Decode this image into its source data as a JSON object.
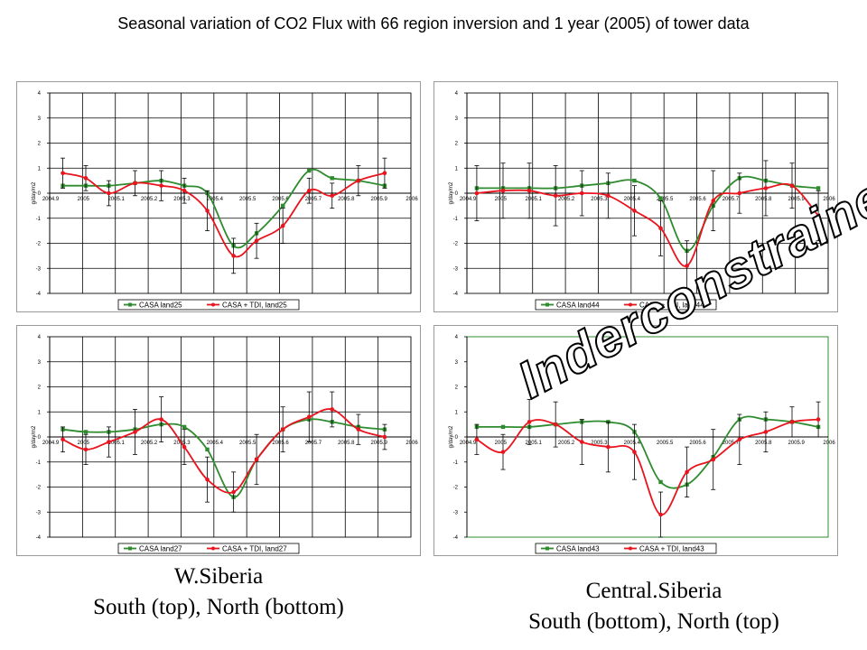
{
  "title": "Seasonal variation of CO2 Flux with 66 region inversion and 1 year (2005) of tower data",
  "captions": {
    "left_line1": "W.Siberia",
    "left_line2": "South (top), North (bottom)",
    "right_line1": "Central.Siberia",
    "right_line2": "South (bottom), North (top)"
  },
  "annotation": "Inderconstrained",
  "colors": {
    "green": "#2e8b2e",
    "red": "#e8141e",
    "grid": "#000000",
    "plot_bg": "#ffffff"
  },
  "chart_data": [
    {
      "id": "w-siberia-south",
      "type": "line",
      "ylabel": "g/day/m2",
      "x_tick_labels": [
        "2004.9",
        "2005",
        "2005.1",
        "2005.2",
        "2005.3",
        "2005.4",
        "2005.5",
        "2005.6",
        "2005.7",
        "2005.8",
        "2005.9",
        "2006"
      ],
      "xlim": [
        2004.9,
        2006
      ],
      "ylim": [
        -4,
        4
      ],
      "y_ticks": [
        -4,
        -3,
        -2,
        -1,
        0,
        1,
        2,
        3,
        4
      ],
      "grid": true,
      "legend_position": "bottom",
      "series": [
        {
          "name": "CASA land25",
          "color": "#2e8b2e",
          "x": [
            2004.94,
            2005.01,
            2005.08,
            2005.16,
            2005.24,
            2005.31,
            2005.38,
            2005.46,
            2005.53,
            2005.61,
            2005.69,
            2005.76,
            2005.84,
            2005.92
          ],
          "y": [
            0.3,
            0.3,
            0.3,
            0.4,
            0.5,
            0.3,
            0.0,
            -2.1,
            -1.6,
            -0.5,
            0.9,
            0.6,
            0.5,
            0.3
          ]
        },
        {
          "name": "CASA + TDI, land25",
          "color": "#e8141e",
          "x": [
            2004.94,
            2005.01,
            2005.08,
            2005.16,
            2005.24,
            2005.31,
            2005.38,
            2005.46,
            2005.53,
            2005.61,
            2005.69,
            2005.76,
            2005.84,
            2005.92
          ],
          "y": [
            0.8,
            0.6,
            0.0,
            0.4,
            0.3,
            0.1,
            -0.7,
            -2.5,
            -1.9,
            -1.3,
            0.1,
            -0.1,
            0.5,
            0.8
          ],
          "error": [
            0.6,
            0.5,
            0.5,
            0.5,
            0.6,
            0.5,
            0.8,
            0.7,
            0.7,
            0.7,
            0.5,
            0.5,
            0.6,
            0.6
          ]
        }
      ]
    },
    {
      "id": "c-siberia-north",
      "type": "line",
      "ylabel": "g/day/m2",
      "x_tick_labels": [
        "2004.9",
        "2005",
        "2005.1",
        "2005.2",
        "2005.3",
        "2005.4",
        "2005.5",
        "2005.6",
        "2005.7",
        "2005.8",
        "2005.9",
        "2006"
      ],
      "xlim": [
        2004.9,
        2006
      ],
      "ylim": [
        -4,
        4
      ],
      "y_ticks": [
        -4,
        -3,
        -2,
        -1,
        0,
        1,
        2,
        3,
        4
      ],
      "grid": true,
      "legend_position": "bottom",
      "series": [
        {
          "name": "CASA land44",
          "color": "#2e8b2e",
          "x": [
            2004.93,
            2005.01,
            2005.09,
            2005.17,
            2005.25,
            2005.33,
            2005.41,
            2005.49,
            2005.57,
            2005.65,
            2005.73,
            2005.81,
            2005.89,
            2005.97
          ],
          "y": [
            0.2,
            0.2,
            0.2,
            0.2,
            0.3,
            0.4,
            0.5,
            -0.2,
            -2.3,
            -0.5,
            0.6,
            0.5,
            0.3,
            0.2
          ]
        },
        {
          "name": "CASA + TDI, land44",
          "color": "#e8141e",
          "x": [
            2004.93,
            2005.01,
            2005.09,
            2005.17,
            2005.25,
            2005.33,
            2005.41,
            2005.49,
            2005.57,
            2005.65,
            2005.73,
            2005.81,
            2005.89,
            2005.97
          ],
          "y": [
            0.0,
            0.1,
            0.1,
            -0.1,
            0.0,
            -0.1,
            -0.7,
            -1.4,
            -2.9,
            -0.3,
            0.0,
            0.2,
            0.3,
            -0.9
          ],
          "error": [
            1.1,
            1.1,
            1.1,
            1.2,
            0.9,
            0.9,
            1.0,
            1.1,
            1.0,
            1.2,
            0.8,
            1.1,
            0.9,
            1.0
          ]
        }
      ]
    },
    {
      "id": "w-siberia-north",
      "type": "line",
      "ylabel": "g/day/m2",
      "x_tick_labels": [
        "2004.9",
        "2005",
        "2005.1",
        "2005.2",
        "2005.3",
        "2005.4",
        "2005.5",
        "2005.6",
        "2005.7",
        "2005.8",
        "2005.9",
        "2006"
      ],
      "xlim": [
        2004.9,
        2006
      ],
      "ylim": [
        -4,
        4
      ],
      "y_ticks": [
        -4,
        -3,
        -2,
        -1,
        0,
        1,
        2,
        3,
        4
      ],
      "grid": true,
      "legend_position": "bottom",
      "series": [
        {
          "name": "CASA land27",
          "color": "#2e8b2e",
          "x": [
            2004.94,
            2005.01,
            2005.08,
            2005.16,
            2005.24,
            2005.31,
            2005.38,
            2005.46,
            2005.53,
            2005.61,
            2005.69,
            2005.76,
            2005.84,
            2005.92
          ],
          "y": [
            0.3,
            0.2,
            0.2,
            0.3,
            0.5,
            0.4,
            -0.5,
            -2.4,
            -0.9,
            0.3,
            0.7,
            0.6,
            0.4,
            0.3
          ]
        },
        {
          "name": "CASA + TDI, land27",
          "color": "#e8141e",
          "x": [
            2004.94,
            2005.01,
            2005.08,
            2005.16,
            2005.24,
            2005.31,
            2005.38,
            2005.46,
            2005.53,
            2005.61,
            2005.69,
            2005.76,
            2005.84,
            2005.92
          ],
          "y": [
            -0.1,
            -0.5,
            -0.2,
            0.2,
            0.7,
            -0.4,
            -1.7,
            -2.2,
            -0.9,
            0.3,
            0.8,
            1.1,
            0.3,
            0.0
          ],
          "error": [
            0.5,
            0.6,
            0.6,
            0.9,
            0.9,
            0.7,
            0.9,
            0.8,
            1.0,
            0.9,
            1.0,
            0.7,
            0.6,
            0.5
          ]
        }
      ]
    },
    {
      "id": "c-siberia-south",
      "type": "line",
      "ylabel": "g/day/m2",
      "x_tick_labels": [
        "2004.9",
        "2005",
        "2005.1",
        "2005.2",
        "2005.3",
        "2005.4",
        "2005.5",
        "2005.6",
        "2005.7",
        "2005.8",
        "2005.9",
        "2006"
      ],
      "xlim": [
        2004.9,
        2006
      ],
      "ylim": [
        -4,
        4
      ],
      "y_ticks": [
        -4,
        -3,
        -2,
        -1,
        0,
        1,
        2,
        3,
        4
      ],
      "grid": false,
      "legend_position": "bottom",
      "series": [
        {
          "name": "CASA land43",
          "color": "#2e8b2e",
          "x": [
            2004.93,
            2005.01,
            2005.09,
            2005.17,
            2005.25,
            2005.33,
            2005.41,
            2005.49,
            2005.57,
            2005.65,
            2005.73,
            2005.81,
            2005.89,
            2005.97
          ],
          "y": [
            0.4,
            0.4,
            0.4,
            0.5,
            0.6,
            0.6,
            0.2,
            -1.8,
            -1.9,
            -0.8,
            0.7,
            0.7,
            0.6,
            0.4
          ]
        },
        {
          "name": "CASA + TDI, land43",
          "color": "#e8141e",
          "x": [
            2004.93,
            2005.01,
            2005.09,
            2005.17,
            2005.25,
            2005.33,
            2005.41,
            2005.49,
            2005.57,
            2005.65,
            2005.73,
            2005.81,
            2005.89,
            2005.97
          ],
          "y": [
            -0.1,
            -0.6,
            0.6,
            0.5,
            -0.2,
            -0.4,
            -0.6,
            -3.1,
            -1.4,
            -0.9,
            -0.1,
            0.2,
            0.6,
            0.7
          ],
          "error": [
            0.6,
            0.7,
            0.9,
            0.9,
            0.9,
            1.0,
            1.1,
            0.9,
            1.0,
            1.2,
            1.0,
            0.8,
            0.6,
            0.7
          ]
        }
      ]
    }
  ]
}
